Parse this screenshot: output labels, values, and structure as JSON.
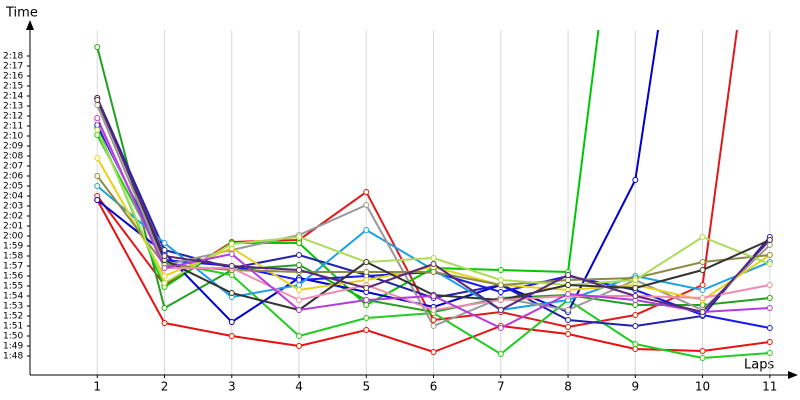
{
  "chart_data": {
    "type": "line",
    "y_label": "Time",
    "x_label": "Laps",
    "xlim": [
      0,
      11.3
    ],
    "ylim": [
      106.1,
      140.6
    ],
    "xticks": [
      1,
      2,
      3,
      4,
      5,
      6,
      7,
      8,
      9,
      10,
      11
    ],
    "yticks": [
      {
        "value": 108,
        "label": "1:48"
      },
      {
        "value": 109,
        "label": "1:49"
      },
      {
        "value": 110,
        "label": "1:50"
      },
      {
        "value": 111,
        "label": "1:51"
      },
      {
        "value": 112,
        "label": "1:52"
      },
      {
        "value": 113,
        "label": "1:53"
      },
      {
        "value": 114,
        "label": "1:54"
      },
      {
        "value": 115,
        "label": "1:55"
      },
      {
        "value": 116,
        "label": "1:56"
      },
      {
        "value": 117,
        "label": "1:57"
      },
      {
        "value": 118,
        "label": "1:58"
      },
      {
        "value": 119,
        "label": "1:59"
      },
      {
        "value": 120,
        "label": "2:00"
      },
      {
        "value": 121,
        "label": "2:01"
      },
      {
        "value": 122,
        "label": "2:02"
      },
      {
        "value": 123,
        "label": "2:03"
      },
      {
        "value": 124,
        "label": "2:04"
      },
      {
        "value": 125,
        "label": "2:05"
      },
      {
        "value": 126,
        "label": "2:06"
      },
      {
        "value": 127,
        "label": "2:07"
      },
      {
        "value": 128,
        "label": "2:08"
      },
      {
        "value": 129,
        "label": "2:09"
      },
      {
        "value": 130,
        "label": "2:10"
      },
      {
        "value": 131,
        "label": "2:11"
      },
      {
        "value": 132,
        "label": "2:12"
      },
      {
        "value": 133,
        "label": "2:13"
      },
      {
        "value": 134,
        "label": "2:14"
      },
      {
        "value": 135,
        "label": "2:15"
      },
      {
        "value": 136,
        "label": "2:16"
      },
      {
        "value": 137,
        "label": "2:17"
      },
      {
        "value": 138,
        "label": "2:18"
      }
    ],
    "x": [
      1,
      2,
      3,
      4,
      5,
      6,
      7,
      8,
      9,
      10,
      11
    ],
    "grid": true,
    "series": [
      {
        "color": "#e81010",
        "values": [
          123.6,
          111.3,
          110,
          109,
          110.6,
          108.4,
          111,
          110.2,
          108.7,
          108.5,
          109.4
        ]
      },
      {
        "color": "#e01a1a",
        "values": [
          124,
          115.1,
          119.4,
          119.6,
          124.4,
          111.6,
          112.4,
          110.9,
          112.1,
          115.1,
          165
        ]
      },
      {
        "color": "#22a022",
        "values": [
          138.9,
          112.8,
          116.6,
          117.1,
          113.6,
          112.4,
          113.8,
          114.1,
          113.1,
          113.1,
          113.8
        ]
      },
      {
        "color": "#00c800",
        "values": [
          130.8,
          114.9,
          119.3,
          119.3,
          113.1,
          116.8,
          116.6,
          116.4,
          170,
          null,
          null
        ]
      },
      {
        "color": "#22cc22",
        "values": [
          130.1,
          117.4,
          116.1,
          110,
          111.8,
          112.3,
          108.2,
          113.6,
          109.2,
          107.8,
          108.3
        ]
      },
      {
        "color": "#0000cc",
        "values": [
          123.6,
          118.3,
          111.4,
          115.8,
          114.4,
          112.9,
          115.1,
          112.4,
          125.6,
          170,
          null
        ]
      },
      {
        "color": "#2222aa",
        "values": [
          133.8,
          118.6,
          116.8,
          118.1,
          116.1,
          113.8,
          115.1,
          111.6,
          111,
          112,
          119.9
        ]
      },
      {
        "color": "#1a1aee",
        "values": [
          131.1,
          117.6,
          117,
          115.6,
          116,
          116.4,
          114.4,
          116,
          114.6,
          112.1,
          110.8
        ]
      },
      {
        "color": "#1ea0e6",
        "values": [
          125,
          119.3,
          113.9,
          115.1,
          120.6,
          116.6,
          112.6,
          113.6,
          116,
          114.6,
          117.4
        ]
      },
      {
        "color": "#999999",
        "values": [
          133.1,
          117.1,
          118.6,
          120.1,
          123.1,
          111,
          113.8,
          112.6,
          115.6,
          112.6,
          119.1
        ]
      },
      {
        "color": "#e6d21e",
        "values": [
          127.8,
          116,
          118.8,
          114.6,
          115.6,
          116.9,
          115.1,
          114.6,
          115.1,
          113.6,
          118.1
        ]
      },
      {
        "color": "#8c8c46",
        "values": [
          126,
          117.1,
          116.6,
          116.4,
          116.4,
          116.4,
          115.1,
          115.6,
          115.8,
          117.4,
          118.1
        ]
      },
      {
        "color": "#aadc5a",
        "values": [
          130.6,
          115.3,
          119.2,
          119.9,
          117.4,
          117.8,
          115.6,
          115.1,
          115.6,
          119.9,
          117.2
        ]
      },
      {
        "color": "#333333",
        "values": [
          133.8,
          117.6,
          114.3,
          112.6,
          117.4,
          114.1,
          113.6,
          115.1,
          114.8,
          116.6,
          119.6
        ]
      },
      {
        "color": "#f08cb4",
        "values": [
          131.6,
          116.8,
          116.8,
          113.6,
          115.1,
          112.6,
          113.6,
          114,
          114,
          113.8,
          115.1
        ]
      },
      {
        "color": "#b43cdc",
        "values": [
          131.8,
          116.8,
          118.2,
          112.6,
          113.6,
          114,
          110.8,
          114.2,
          113.6,
          112.4,
          112.8
        ]
      },
      {
        "color": "#5a2878",
        "values": [
          133.6,
          118,
          117,
          116.6,
          114.8,
          117.2,
          112.6,
          116.1,
          114,
          112.4,
          119.6
        ]
      }
    ]
  }
}
